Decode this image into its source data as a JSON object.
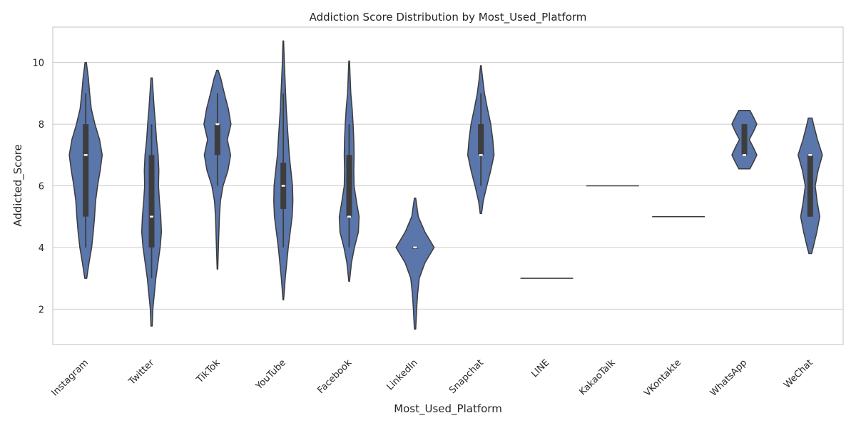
{
  "chart_data": {
    "type": "violin",
    "title": "Addiction Score Distribution by Most_Used_Platform",
    "xlabel": "Most_Used_Platform",
    "ylabel": "Addicted_Score",
    "ylim": [
      0.85,
      11.15
    ],
    "yticks": [
      2,
      4,
      6,
      8,
      10
    ],
    "grid": "horizontal",
    "color": "#5a76aa",
    "edge_color": "#3b3b3b",
    "categories": [
      "Instagram",
      "Twitter",
      "TikTok",
      "YouTube",
      "Facebook",
      "LinkedIn",
      "Snapchat",
      "LINE",
      "KakaoTalk",
      "VKontakte",
      "WhatsApp",
      "WeChat"
    ],
    "violins": [
      {
        "name": "Instagram",
        "min": 2.95,
        "max": 10.0,
        "q1": 5.0,
        "median": 7.0,
        "q3": 8.0,
        "whisker_low": 4.0,
        "whisker_high": 9.0,
        "profile": [
          [
            3.0,
            0.03
          ],
          [
            3.5,
            0.1
          ],
          [
            4.0,
            0.18
          ],
          [
            4.5,
            0.23
          ],
          [
            5.0,
            0.27
          ],
          [
            5.5,
            0.3
          ],
          [
            6.0,
            0.36
          ],
          [
            6.5,
            0.44
          ],
          [
            7.0,
            0.5
          ],
          [
            7.5,
            0.42
          ],
          [
            8.0,
            0.28
          ],
          [
            8.5,
            0.17
          ],
          [
            9.0,
            0.12
          ],
          [
            9.5,
            0.08
          ],
          [
            10.0,
            0.02
          ]
        ]
      },
      {
        "name": "Twitter",
        "min": 1.4,
        "max": 9.55,
        "q1": 4.0,
        "median": 5.0,
        "q3": 7.0,
        "whisker_low": 3.0,
        "whisker_high": 8.0,
        "profile": [
          [
            1.45,
            0.02
          ],
          [
            2.0,
            0.04
          ],
          [
            3.0,
            0.13
          ],
          [
            4.0,
            0.26
          ],
          [
            4.5,
            0.3
          ],
          [
            5.0,
            0.28
          ],
          [
            5.5,
            0.24
          ],
          [
            6.0,
            0.21
          ],
          [
            6.5,
            0.22
          ],
          [
            7.0,
            0.2
          ],
          [
            7.5,
            0.15
          ],
          [
            8.0,
            0.12
          ],
          [
            8.5,
            0.08
          ],
          [
            9.0,
            0.05
          ],
          [
            9.5,
            0.02
          ]
        ]
      },
      {
        "name": "TikTok",
        "min": 3.25,
        "max": 9.75,
        "q1": 7.0,
        "median": 8.0,
        "q3": 8.0,
        "whisker_low": 6.0,
        "whisker_high": 9.0,
        "profile": [
          [
            3.3,
            0.01
          ],
          [
            4.0,
            0.03
          ],
          [
            5.0,
            0.06
          ],
          [
            5.5,
            0.09
          ],
          [
            6.0,
            0.17
          ],
          [
            6.5,
            0.32
          ],
          [
            7.0,
            0.4
          ],
          [
            7.5,
            0.3
          ],
          [
            8.0,
            0.41
          ],
          [
            8.5,
            0.33
          ],
          [
            9.0,
            0.21
          ],
          [
            9.5,
            0.1
          ],
          [
            9.75,
            0.02
          ]
        ]
      },
      {
        "name": "YouTube",
        "min": 2.25,
        "max": 10.7,
        "q1": 5.25,
        "median": 6.0,
        "q3": 6.75,
        "whisker_low": 4.0,
        "whisker_high": 9.0,
        "profile": [
          [
            2.3,
            0.01
          ],
          [
            3.0,
            0.06
          ],
          [
            4.0,
            0.15
          ],
          [
            5.0,
            0.27
          ],
          [
            5.5,
            0.29
          ],
          [
            6.0,
            0.28
          ],
          [
            6.5,
            0.23
          ],
          [
            7.0,
            0.18
          ],
          [
            7.5,
            0.15
          ],
          [
            8.0,
            0.12
          ],
          [
            8.5,
            0.09
          ],
          [
            9.0,
            0.07
          ],
          [
            9.5,
            0.05
          ],
          [
            10.0,
            0.03
          ],
          [
            10.7,
            0.01
          ]
        ]
      },
      {
        "name": "Facebook",
        "min": 2.9,
        "max": 10.05,
        "q1": 5.0,
        "median": 5.0,
        "q3": 7.0,
        "whisker_low": 4.0,
        "whisker_high": 8.0,
        "profile": [
          [
            2.9,
            0.01
          ],
          [
            3.5,
            0.07
          ],
          [
            4.0,
            0.16
          ],
          [
            4.5,
            0.28
          ],
          [
            5.0,
            0.3
          ],
          [
            5.5,
            0.22
          ],
          [
            6.0,
            0.15
          ],
          [
            6.5,
            0.14
          ],
          [
            7.0,
            0.15
          ],
          [
            7.5,
            0.14
          ],
          [
            8.0,
            0.12
          ],
          [
            8.5,
            0.09
          ],
          [
            9.0,
            0.05
          ],
          [
            9.5,
            0.03
          ],
          [
            10.05,
            0.01
          ]
        ]
      },
      {
        "name": "LinkedIn",
        "min": 1.35,
        "max": 5.6,
        "q1": 4.0,
        "median": 4.0,
        "q3": 4.0,
        "whisker_low": 4.0,
        "whisker_high": 4.0,
        "profile": [
          [
            1.35,
            0.02
          ],
          [
            2.0,
            0.05
          ],
          [
            2.5,
            0.08
          ],
          [
            3.0,
            0.13
          ],
          [
            3.5,
            0.3
          ],
          [
            4.0,
            0.58
          ],
          [
            4.5,
            0.3
          ],
          [
            5.0,
            0.1
          ],
          [
            5.6,
            0.02
          ]
        ]
      },
      {
        "name": "Snapchat",
        "min": 5.05,
        "max": 9.9,
        "q1": 7.0,
        "median": 7.0,
        "q3": 8.0,
        "whisker_low": 6.0,
        "whisker_high": 9.0,
        "profile": [
          [
            5.1,
            0.02
          ],
          [
            5.5,
            0.07
          ],
          [
            6.0,
            0.18
          ],
          [
            6.5,
            0.3
          ],
          [
            7.0,
            0.4
          ],
          [
            7.5,
            0.36
          ],
          [
            8.0,
            0.3
          ],
          [
            8.5,
            0.2
          ],
          [
            9.0,
            0.11
          ],
          [
            9.5,
            0.05
          ],
          [
            9.9,
            0.01
          ]
        ]
      },
      {
        "name": "LINE",
        "constant": 3,
        "width": 0.8
      },
      {
        "name": "KakaoTalk",
        "constant": 6,
        "width": 0.8
      },
      {
        "name": "VKontakte",
        "constant": 5,
        "width": 0.8
      },
      {
        "name": "WhatsApp",
        "min": 6.55,
        "max": 8.45,
        "q1": 7.0,
        "median": 7.0,
        "q3": 8.0,
        "whisker_low": 7.0,
        "whisker_high": 8.0,
        "profile": [
          [
            6.55,
            0.17
          ],
          [
            6.8,
            0.29
          ],
          [
            7.0,
            0.38
          ],
          [
            7.25,
            0.27
          ],
          [
            7.5,
            0.15
          ],
          [
            7.75,
            0.27
          ],
          [
            8.0,
            0.38
          ],
          [
            8.2,
            0.29
          ],
          [
            8.45,
            0.17
          ]
        ]
      },
      {
        "name": "WeChat",
        "min": 3.8,
        "max": 8.2,
        "q1": 5.0,
        "median": 7.0,
        "q3": 7.0,
        "whisker_low": 5.0,
        "whisker_high": 7.0,
        "profile": [
          [
            3.8,
            0.04
          ],
          [
            4.0,
            0.09
          ],
          [
            4.5,
            0.2
          ],
          [
            5.0,
            0.29
          ],
          [
            5.5,
            0.21
          ],
          [
            6.0,
            0.15
          ],
          [
            6.5,
            0.24
          ],
          [
            7.0,
            0.37
          ],
          [
            7.5,
            0.22
          ],
          [
            8.0,
            0.1
          ],
          [
            8.2,
            0.06
          ]
        ]
      }
    ]
  }
}
